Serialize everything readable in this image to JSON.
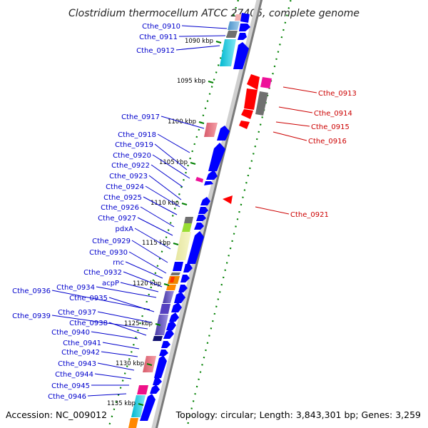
{
  "title": "Clostridium thermocellum ATCC 27405, complete genome",
  "footer": {
    "accession": "Accession: NC_009012",
    "topology": "Topology: circular; Length: 3,843,301 bp; Genes: 3,259"
  },
  "colors": {
    "forward_label": "#0000cc",
    "reverse_label": "#cc0000",
    "forward_gene": "#0000ff",
    "reverse_gene": "#ff0000",
    "tick": "#008000",
    "backbone": "#888888"
  },
  "kbp_markers": [
    "1090 kbp",
    "1095 kbp",
    "1100 kbp",
    "1105 kbp",
    "1110 kbp",
    "1115 kbp",
    "1120 kbp",
    "1125 kbp",
    "1130 kbp",
    "1135 kbp"
  ],
  "forward_labels": [
    "Cthe_0910",
    "Cthe_0911",
    "Cthe_0912",
    "Cthe_0917",
    "Cthe_0918",
    "Cthe_0919",
    "Cthe_0920",
    "Cthe_0922",
    "Cthe_0923",
    "Cthe_0924",
    "Cthe_0925",
    "Cthe_0926",
    "Cthe_0927",
    "pdxA",
    "Cthe_0929",
    "Cthe_0930",
    "rnc",
    "Cthe_0932",
    "acpP",
    "Cthe_0934",
    "Cthe_0936",
    "Cthe_0935",
    "Cthe_0937",
    "Cthe_0939",
    "Cthe_0938",
    "Cthe_0940",
    "Cthe_0941",
    "Cthe_0942",
    "Cthe_0943",
    "Cthe_0944",
    "Cthe_0945",
    "Cthe_0946"
  ],
  "reverse_labels": [
    "Cthe_0913",
    "Cthe_0914",
    "Cthe_0915",
    "Cthe_0916",
    "Cthe_0921"
  ]
}
